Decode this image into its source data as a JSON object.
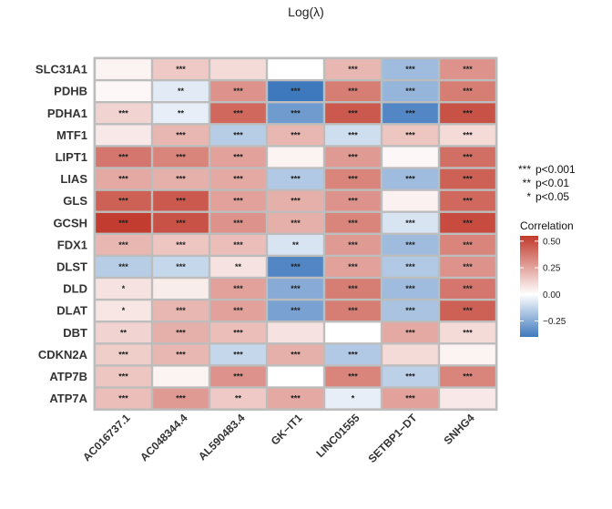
{
  "chart_data": {
    "type": "heatmap",
    "title": "Log(λ)",
    "rows": [
      "SLC31A1",
      "PDHB",
      "PDHA1",
      "MTF1",
      "LIPT1",
      "LIAS",
      "GLS",
      "GCSH",
      "FDX1",
      "DLST",
      "DLD",
      "DLAT",
      "DBT",
      "CDKN2A",
      "ATP7B",
      "ATP7A"
    ],
    "columns": [
      "AC016737.1",
      "AC048344.4",
      "AL590483.4",
      "GK−IT1",
      "LINC01555",
      "SETBP1−DT",
      "SNHG4"
    ],
    "values": [
      [
        0.03,
        0.15,
        0.1,
        0.0,
        0.2,
        -0.2,
        0.3
      ],
      [
        0.02,
        -0.06,
        0.3,
        -0.4,
        0.36,
        -0.22,
        0.36
      ],
      [
        0.12,
        -0.05,
        0.42,
        -0.3,
        0.46,
        -0.36,
        0.48
      ],
      [
        0.06,
        0.2,
        -0.15,
        0.2,
        -0.1,
        0.16,
        0.1
      ],
      [
        0.38,
        0.34,
        0.26,
        0.03,
        0.28,
        0.02,
        0.4
      ],
      [
        0.24,
        0.22,
        0.24,
        -0.16,
        0.34,
        -0.2,
        0.44
      ],
      [
        0.44,
        0.46,
        0.26,
        0.22,
        0.3,
        0.04,
        0.42
      ],
      [
        0.54,
        0.48,
        0.3,
        0.22,
        0.34,
        -0.08,
        0.5
      ],
      [
        0.2,
        0.16,
        0.18,
        -0.08,
        0.28,
        -0.2,
        0.34
      ],
      [
        -0.15,
        -0.12,
        0.08,
        -0.36,
        0.26,
        -0.16,
        0.3
      ],
      [
        0.08,
        0.05,
        0.26,
        -0.25,
        0.36,
        -0.2,
        0.38
      ],
      [
        0.07,
        0.2,
        0.26,
        -0.28,
        0.36,
        -0.18,
        0.44
      ],
      [
        0.12,
        0.22,
        0.18,
        0.08,
        0.0,
        0.24,
        0.1
      ],
      [
        0.14,
        0.2,
        -0.12,
        0.22,
        -0.16,
        0.1,
        0.03
      ],
      [
        0.16,
        0.03,
        0.3,
        0.0,
        0.34,
        -0.14,
        0.34
      ],
      [
        0.18,
        0.28,
        0.15,
        0.24,
        -0.05,
        0.26,
        0.06
      ]
    ],
    "significance": [
      [
        "",
        "***",
        "",
        "",
        "***",
        "***",
        "***"
      ],
      [
        "",
        "**",
        "***",
        "***",
        "***",
        "***",
        "***"
      ],
      [
        "***",
        "**",
        "***",
        "***",
        "***",
        "***",
        "***"
      ],
      [
        "",
        "***",
        "***",
        "***",
        "***",
        "***",
        "***"
      ],
      [
        "***",
        "***",
        "***",
        "",
        "***",
        "",
        "***"
      ],
      [
        "***",
        "***",
        "***",
        "***",
        "***",
        "***",
        "***"
      ],
      [
        "***",
        "***",
        "***",
        "***",
        "***",
        "",
        "***"
      ],
      [
        "***",
        "***",
        "***",
        "***",
        "***",
        "***",
        "***"
      ],
      [
        "***",
        "***",
        "***",
        "**",
        "***",
        "***",
        "***"
      ],
      [
        "***",
        "***",
        "**",
        "***",
        "***",
        "***",
        "***"
      ],
      [
        "*",
        "",
        "***",
        "***",
        "***",
        "***",
        "***"
      ],
      [
        "*",
        "***",
        "***",
        "***",
        "***",
        "***",
        "***"
      ],
      [
        "**",
        "***",
        "***",
        "",
        "",
        "***",
        "***"
      ],
      [
        "***",
        "***",
        "***",
        "***",
        "***",
        "",
        ""
      ],
      [
        "***",
        "",
        "***",
        "",
        "***",
        "***",
        "***"
      ],
      [
        "***",
        "***",
        "**",
        "***",
        "*",
        "***",
        ""
      ]
    ],
    "significance_legend": [
      {
        "symbol": "***",
        "label": "p<0.001"
      },
      {
        "symbol": "**",
        "label": "p<0.01"
      },
      {
        "symbol": "*",
        "label": "p<0.05"
      }
    ],
    "colorbar": {
      "title": "Correlation",
      "ticks": [
        "0.50",
        "0.25",
        "0.00",
        "−0.25"
      ],
      "tick_values": [
        0.5,
        0.25,
        0.0,
        -0.25
      ],
      "range": [
        -0.4,
        0.55
      ],
      "low_color": "#3f79bd",
      "mid_color": "#ffffff",
      "high_color": "#c1392b"
    }
  }
}
